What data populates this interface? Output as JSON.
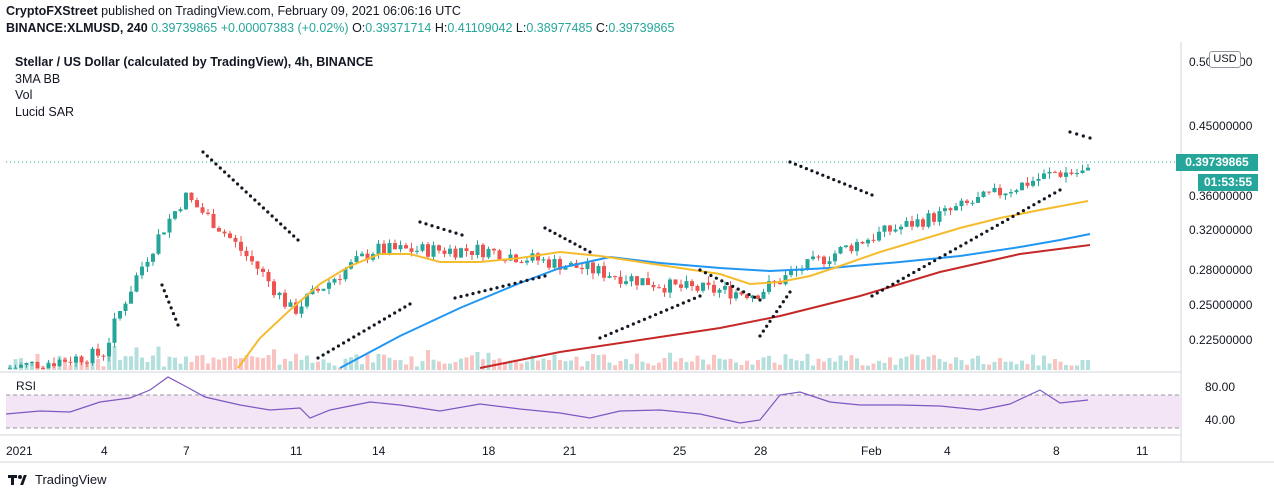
{
  "header": {
    "publisher": "CryptoFXStreet",
    "published_text": "published on TradingView.com, February 09, 2021 06:06:16 UTC"
  },
  "ohlc": {
    "symbol": "BINANCE:XLMUSD, 240",
    "last": "0.39739865",
    "change": "+0.00007383 (+0.02%)",
    "o_label": "O:",
    "o": "0.39371714",
    "h_label": "H:",
    "h": "0.41109042",
    "l_label": "L:",
    "l": "0.38977485",
    "c_label": "C:",
    "c": "0.39739865"
  },
  "legend": {
    "title": "Stellar / US Dollar (calculated by TradingView), 4h, BINANCE",
    "items": [
      "3MA BB",
      "Vol",
      "Lucid SAR"
    ]
  },
  "price_axis": {
    "currency": "USD",
    "ticks": [
      "0.50000000",
      "0.45000000",
      "0.36000000",
      "0.32000000",
      "0.28000000",
      "0.25000000",
      "0.22500000"
    ],
    "last_price": "0.39739865",
    "countdown": "01:53:55"
  },
  "rsi": {
    "label": "RSI",
    "ticks": [
      "80.00",
      "40.00"
    ],
    "upper_band": 70,
    "lower_band": 30
  },
  "time_axis": {
    "ticks": [
      "2021",
      "4",
      "7",
      "11",
      "14",
      "18",
      "21",
      "25",
      "28",
      "Feb",
      "4",
      "8",
      "11"
    ]
  },
  "branding": {
    "name": "TradingView"
  },
  "colors": {
    "up": "#26a69a",
    "down": "#ef5350",
    "ma_short": "#f5bc2e",
    "ma_mid": "#2196f3",
    "ma_long": "#c62828",
    "sar": "#131722",
    "rsi_line": "#7e57c2",
    "rsi_fill": "#f3e5f5"
  },
  "chart_data": {
    "type": "candlestick",
    "title": "Stellar / US Dollar (calculated by TradingView), 4h, BINANCE",
    "x": [
      "2021",
      "4",
      "7",
      "11",
      "14",
      "18",
      "21",
      "25",
      "28",
      "Feb",
      "4",
      "8",
      "11"
    ],
    "y_ticks": [
      0.5,
      0.45,
      0.36,
      0.32,
      0.28,
      0.25,
      0.225
    ],
    "last_price": 0.39739865,
    "close_path": [
      {
        "x": "2021",
        "y": 0.205
      },
      {
        "x": "4",
        "y": 0.215
      },
      {
        "x": "7",
        "y": 0.36
      },
      {
        "x": "11",
        "y": 0.245
      },
      {
        "x": "14",
        "y": 0.3
      },
      {
        "x": "18",
        "y": 0.3
      },
      {
        "x": "21",
        "y": 0.285
      },
      {
        "x": "25",
        "y": 0.265
      },
      {
        "x": "28",
        "y": 0.26
      },
      {
        "x": "Feb",
        "y": 0.31
      },
      {
        "x": "4",
        "y": 0.34
      },
      {
        "x": "8",
        "y": 0.39
      }
    ],
    "series": [
      {
        "name": "3MA BB",
        "type": "line"
      },
      {
        "name": "Vol",
        "type": "bar"
      },
      {
        "name": "Lucid SAR",
        "type": "dots"
      },
      {
        "name": "RSI",
        "type": "line",
        "ylim": [
          20,
          90
        ]
      }
    ],
    "grid": false
  }
}
